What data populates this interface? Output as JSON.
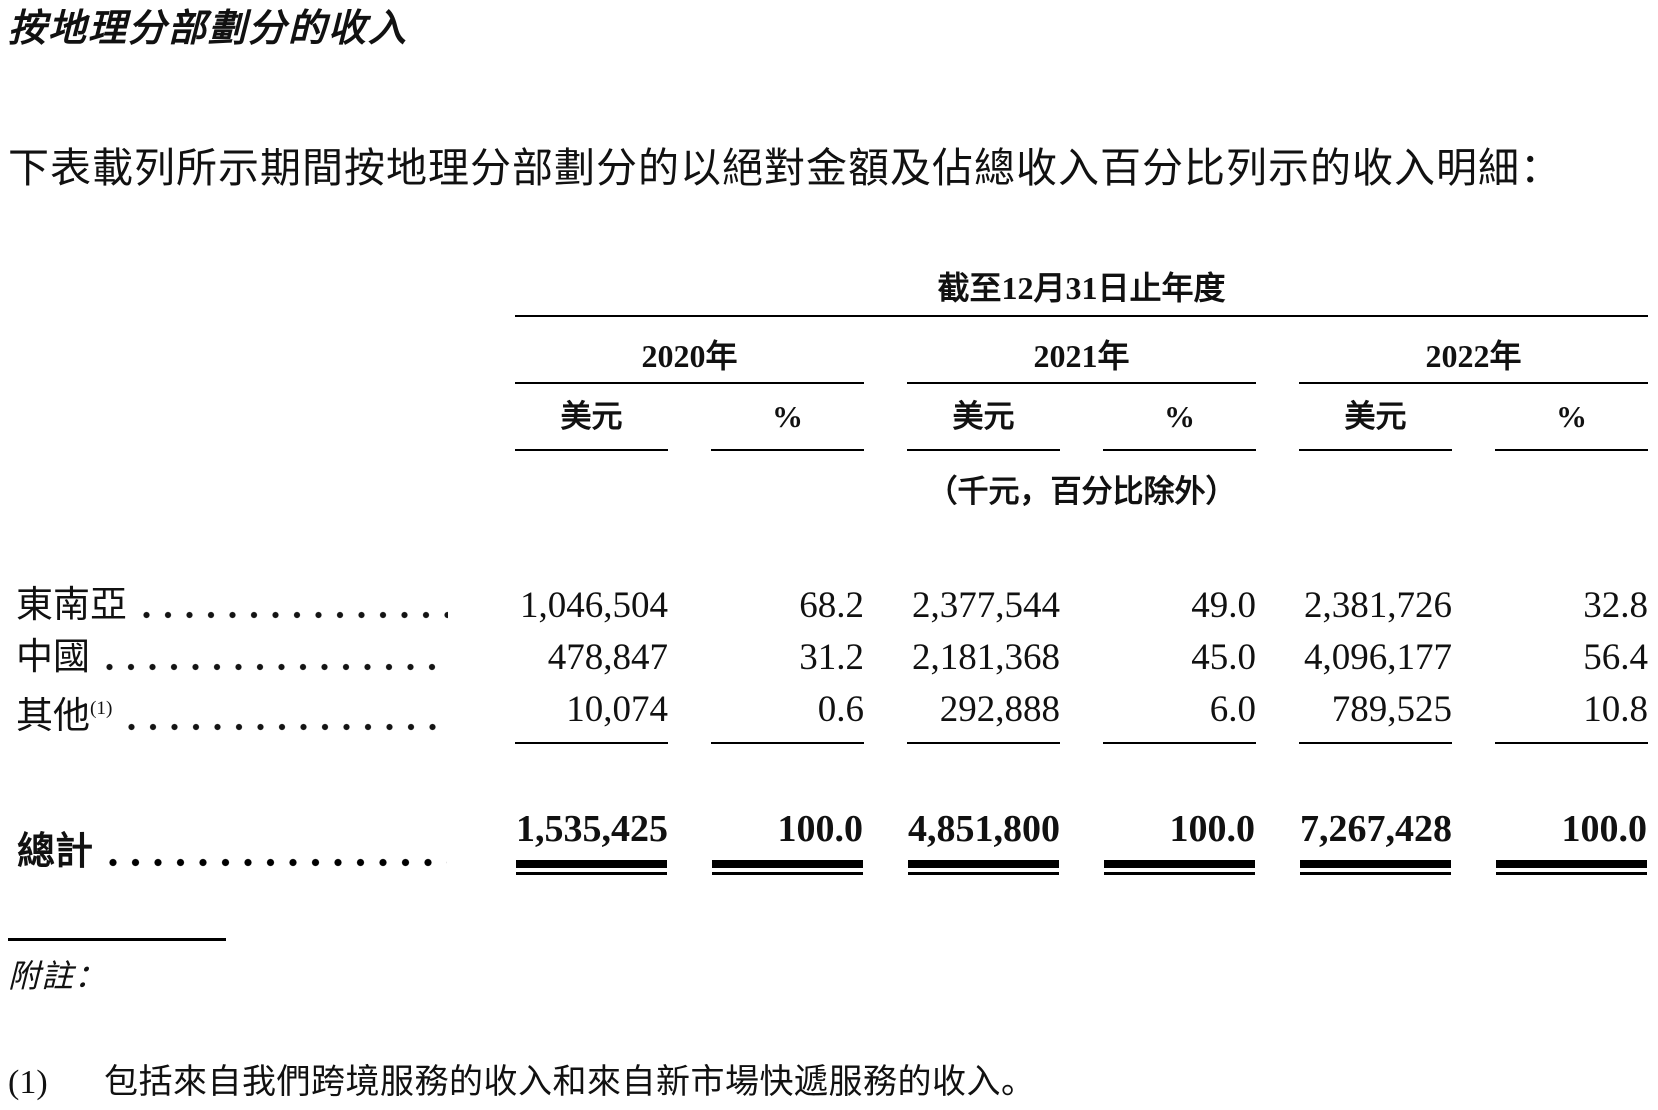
{
  "page": {
    "title": "按地理分部劃分的收入",
    "intro": "下表載列所示期間按地理分部劃分的以絕對金額及佔總收入百分比列示的收入明細：",
    "table": {
      "period_header": "截至12月31日止年度",
      "year_groups": [
        {
          "label": "2020年"
        },
        {
          "label": "2021年"
        },
        {
          "label": "2022年"
        }
      ],
      "col_headers": {
        "amount": "美元",
        "percent": "%"
      },
      "unit_note": "（千元，百分比除外）",
      "rows": [
        {
          "label": "東南亞",
          "sup": "",
          "values": [
            "1,046,504",
            "68.2",
            "2,377,544",
            "49.0",
            "2,381,726",
            "32.8"
          ]
        },
        {
          "label": "中國",
          "sup": "",
          "values": [
            "478,847",
            "31.2",
            "2,181,368",
            "45.0",
            "4,096,177",
            "56.4"
          ]
        },
        {
          "label": "其他",
          "sup": "(1)",
          "values": [
            "10,074",
            "0.6",
            "292,888",
            "6.0",
            "789,525",
            "10.8"
          ]
        }
      ],
      "total": {
        "label": "總計",
        "values": [
          "1,535,425",
          "100.0",
          "4,851,800",
          "100.0",
          "7,267,428",
          "100.0"
        ]
      }
    },
    "notes": {
      "heading": "附註：",
      "items": [
        {
          "marker": "(1)",
          "text": "包括來自我們跨境服務的收入和來自新市場快遞服務的收入。"
        }
      ]
    }
  },
  "chart_data": {
    "type": "table",
    "title": "按地理分部劃分的收入",
    "period_header": "截至12月31日止年度",
    "unit_note": "（千元，百分比除外）",
    "columns": [
      "2020年 美元",
      "2020年 %",
      "2021年 美元",
      "2021年 %",
      "2022年 美元",
      "2022年 %"
    ],
    "rows": [
      {
        "label": "東南亞",
        "values": [
          1046504,
          68.2,
          2377544,
          49.0,
          2381726,
          32.8
        ]
      },
      {
        "label": "中國",
        "values": [
          478847,
          31.2,
          2181368,
          45.0,
          4096177,
          56.4
        ]
      },
      {
        "label": "其他(1)",
        "values": [
          10074,
          0.6,
          292888,
          6.0,
          789525,
          10.8
        ]
      },
      {
        "label": "總計",
        "values": [
          1535425,
          100.0,
          4851800,
          100.0,
          7267428,
          100.0
        ]
      }
    ]
  }
}
